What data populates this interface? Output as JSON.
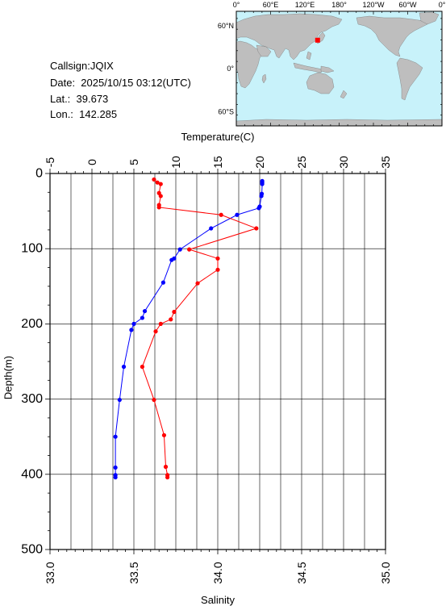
{
  "station": {
    "callsign": "Callsign:JQIX",
    "date": "Date:  2025/10/15 03:12(UTC)",
    "lat": "Lat.:  39.673",
    "lon": "Lon.:  142.285"
  },
  "map": {
    "top_labels": [
      "0°",
      "60°E",
      "120°E",
      "180°",
      "120°W",
      "60°W",
      "0°"
    ],
    "lat_labels": [
      "60°N",
      "0°",
      "60°S"
    ],
    "ocean_color": "#c8f2fa",
    "land_color": "#bebebe",
    "marker_color": "#ff0000",
    "marker": {
      "lon": 142.285,
      "lat": 39.673
    }
  },
  "chart_data": {
    "type": "line",
    "ylabel": "Depth(m)",
    "ylim": [
      500,
      0
    ],
    "yticks": [
      0,
      100,
      200,
      300,
      400,
      500
    ],
    "grid": true,
    "top_axis": {
      "label": "Temperature(C)",
      "range": [
        -5,
        35
      ],
      "ticks": [
        -5,
        0,
        5,
        10,
        15,
        20,
        25,
        30,
        35
      ]
    },
    "bottom_axis": {
      "label": "Salinity",
      "range": [
        33.0,
        35.0
      ],
      "ticks": [
        "33.0",
        "33.5",
        "34.0",
        "34.5",
        "35.0"
      ]
    },
    "series": [
      {
        "axis": "temperature",
        "color": "#0000ff",
        "points": [
          [
            20.3,
            10
          ],
          [
            20.3,
            12
          ],
          [
            20.3,
            14
          ],
          [
            20.25,
            27
          ],
          [
            20.2,
            30
          ],
          [
            20.0,
            44
          ],
          [
            19.9,
            46
          ],
          [
            17.3,
            55
          ],
          [
            14.2,
            73
          ],
          [
            10.5,
            101
          ],
          [
            9.8,
            113
          ],
          [
            9.5,
            115
          ],
          [
            8.5,
            145
          ],
          [
            6.3,
            183
          ],
          [
            6.0,
            192
          ],
          [
            5.0,
            200
          ],
          [
            4.7,
            208
          ],
          [
            3.8,
            257
          ],
          [
            3.3,
            301
          ],
          [
            2.8,
            350
          ],
          [
            2.8,
            391
          ],
          [
            2.8,
            401
          ],
          [
            2.8,
            404
          ]
        ]
      },
      {
        "axis": "salinity",
        "color": "#ff0000",
        "points": [
          [
            33.62,
            8
          ],
          [
            33.64,
            12
          ],
          [
            33.66,
            14
          ],
          [
            33.65,
            26
          ],
          [
            33.66,
            30
          ],
          [
            33.65,
            42
          ],
          [
            33.65,
            45
          ],
          [
            34.02,
            55
          ],
          [
            34.23,
            73
          ],
          [
            33.83,
            101
          ],
          [
            34.0,
            113
          ],
          [
            34.0,
            128
          ],
          [
            33.88,
            146
          ],
          [
            33.74,
            184
          ],
          [
            33.72,
            194
          ],
          [
            33.66,
            200
          ],
          [
            33.63,
            210
          ],
          [
            33.55,
            257
          ],
          [
            33.62,
            301
          ],
          [
            33.68,
            348
          ],
          [
            33.69,
            390
          ],
          [
            33.7,
            401
          ],
          [
            33.7,
            404
          ]
        ]
      }
    ]
  }
}
